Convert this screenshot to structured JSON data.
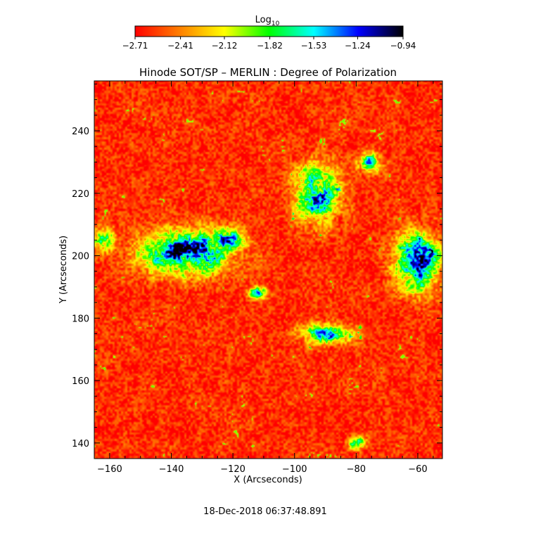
{
  "chart_data": {
    "type": "heatmap",
    "title": "Hinode SOT/SP – MERLIN : Degree of Polarization",
    "xlabel": "X (Arcseconds)",
    "ylabel": "Y (Arcseconds)",
    "xlim": [
      -165,
      -52
    ],
    "ylim": [
      135,
      256
    ],
    "x_ticks": [
      -160,
      -140,
      -120,
      -100,
      -80,
      -60
    ],
    "x_tick_labels": [
      "−160",
      "−140",
      "−120",
      "−100",
      "−80",
      "−60"
    ],
    "y_ticks": [
      140,
      160,
      180,
      200,
      220,
      240
    ],
    "y_tick_labels": [
      "140",
      "160",
      "180",
      "200",
      "220",
      "240"
    ],
    "colorbar": {
      "label_base": "Log",
      "label_sub": "10",
      "range": [
        -2.71,
        -0.94
      ],
      "ticks": [
        -2.71,
        -2.41,
        -2.12,
        -1.82,
        -1.53,
        -1.24,
        -0.94
      ],
      "tick_labels": [
        "−2.71",
        "−2.41",
        "−2.12",
        "−1.82",
        "−1.53",
        "−1.24",
        "−0.94"
      ],
      "colors": [
        "#ff0000",
        "#ff7f00",
        "#ffff00",
        "#00ff00",
        "#00ffff",
        "#0000ff",
        "#000000"
      ]
    },
    "regions": [
      {
        "name": "",
        "x": -135,
        "y": 201,
        "rx": 14,
        "ry": 7,
        "peak": -0.94
      },
      {
        "name": "",
        "x": -122,
        "y": 205,
        "rx": 6,
        "ry": 4,
        "peak": -1.2
      },
      {
        "name": "",
        "x": -93,
        "y": 220,
        "rx": 7,
        "ry": 9,
        "peak": -1.25
      },
      {
        "name": "",
        "x": -60,
        "y": 198,
        "rx": 7,
        "ry": 9,
        "peak": -1.0
      },
      {
        "name": "",
        "x": -90,
        "y": 175,
        "rx": 8,
        "ry": 3,
        "peak": -1.3
      },
      {
        "name": "",
        "x": -162,
        "y": 205,
        "rx": 3,
        "ry": 4,
        "peak": -1.45
      },
      {
        "name": "",
        "x": -112,
        "y": 188,
        "rx": 3,
        "ry": 2,
        "peak": -1.5
      },
      {
        "name": "",
        "x": -80,
        "y": 140,
        "rx": 3,
        "ry": 2,
        "peak": -1.55
      },
      {
        "name": "",
        "x": -76,
        "y": 230,
        "rx": 4,
        "ry": 3,
        "peak": -1.55
      }
    ],
    "background_level": -2.6,
    "grid": false
  },
  "footer": {
    "timestamp": "18-Dec-2018 06:37:48.891"
  }
}
